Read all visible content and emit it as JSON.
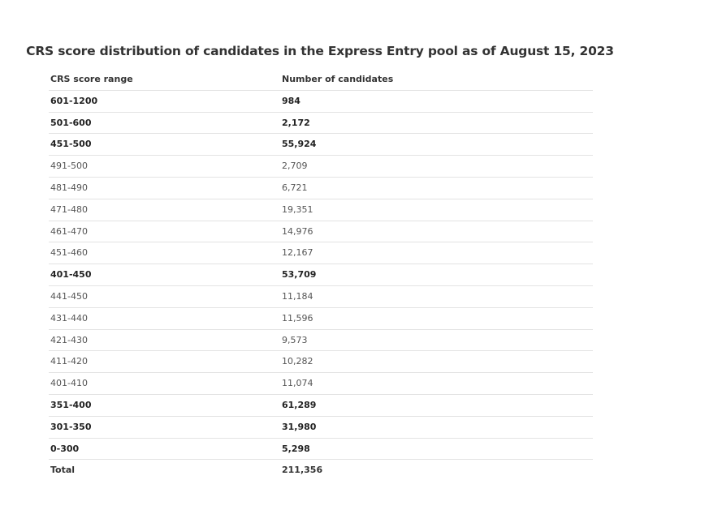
{
  "chart_data": {
    "type": "table",
    "title": "CRS score distribution of candidates in the Express Entry pool as of August 15, 2023",
    "columns": [
      "CRS score range",
      "Number of candidates"
    ],
    "rows": [
      {
        "range": "601-1200",
        "count": "984",
        "bold": true
      },
      {
        "range": "501-600",
        "count": "2,172",
        "bold": true
      },
      {
        "range": "451-500",
        "count": "55,924",
        "bold": true
      },
      {
        "range": "491-500",
        "count": "2,709",
        "bold": false
      },
      {
        "range": "481-490",
        "count": "6,721",
        "bold": false
      },
      {
        "range": "471-480",
        "count": "19,351",
        "bold": false
      },
      {
        "range": "461-470",
        "count": "14,976",
        "bold": false
      },
      {
        "range": "451-460",
        "count": "12,167",
        "bold": false
      },
      {
        "range": "401-450",
        "count": "53,709",
        "bold": true
      },
      {
        "range": "441-450",
        "count": "11,184",
        "bold": false
      },
      {
        "range": "431-440",
        "count": "11,596",
        "bold": false
      },
      {
        "range": "421-430",
        "count": "9,573",
        "bold": false
      },
      {
        "range": "411-420",
        "count": "10,282",
        "bold": false
      },
      {
        "range": "401-410",
        "count": "11,074",
        "bold": false
      },
      {
        "range": "351-400",
        "count": "61,289",
        "bold": true
      },
      {
        "range": "301-350",
        "count": "31,980",
        "bold": true
      },
      {
        "range": "0-300",
        "count": "5,298",
        "bold": true
      }
    ],
    "total": {
      "label": "Total",
      "count": "211,356"
    }
  }
}
